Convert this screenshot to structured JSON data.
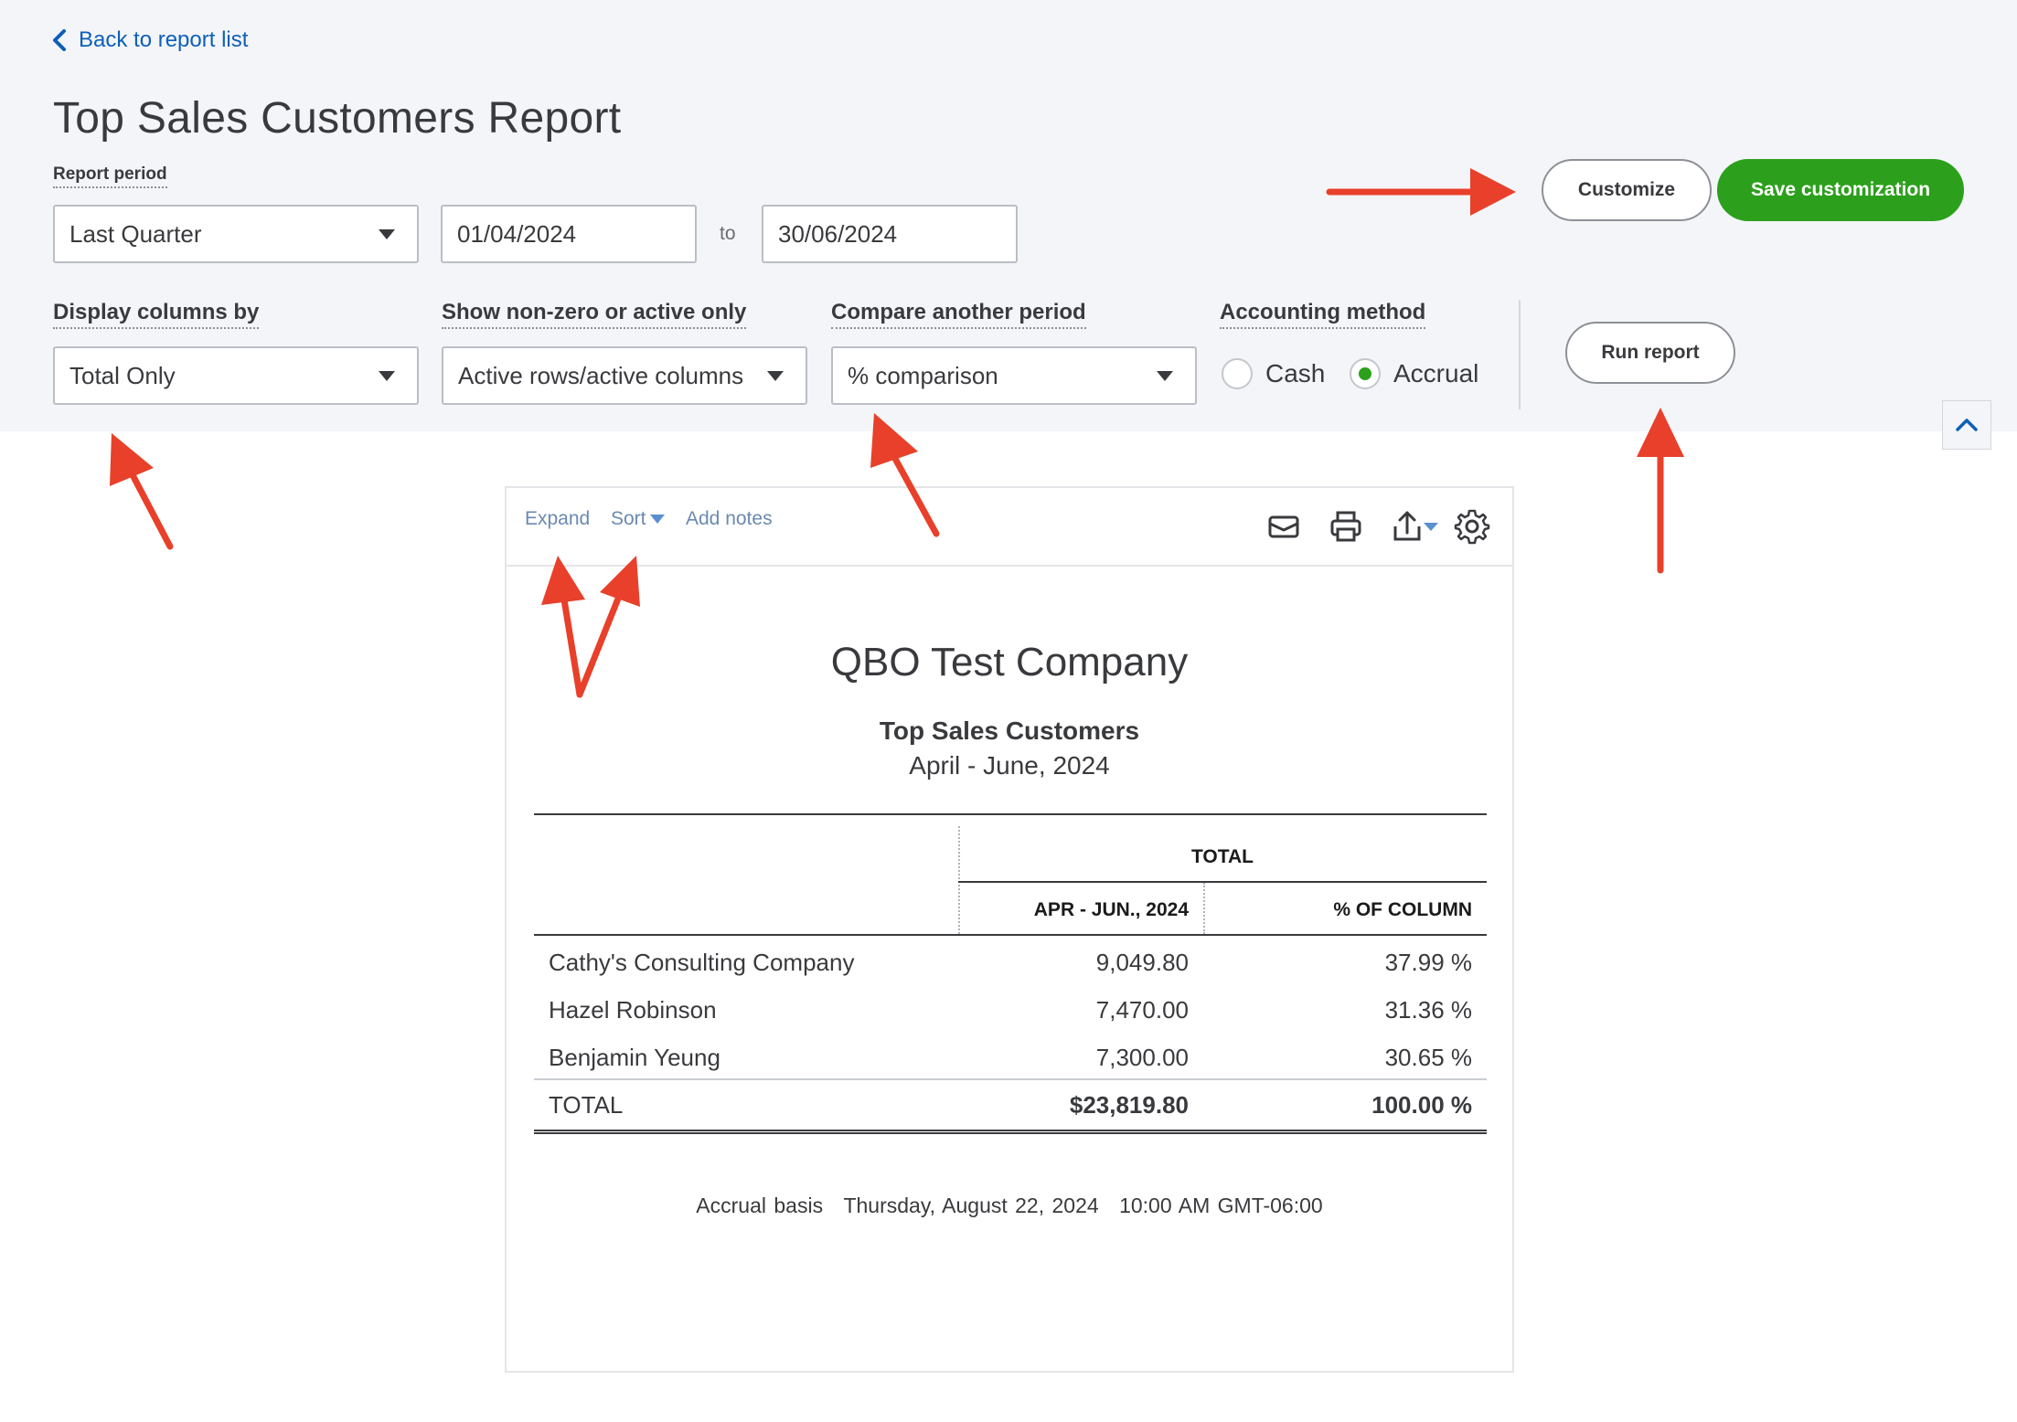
{
  "nav": {
    "back_label": "Back to report list"
  },
  "page": {
    "title": "Top Sales Customers Report"
  },
  "filters": {
    "report_period_label": "Report period",
    "report_period_value": "Last Quarter",
    "start_date": "01/04/2024",
    "to_label": "to",
    "end_date": "30/06/2024",
    "display_columns_label": "Display columns by",
    "display_columns_value": "Total Only",
    "non_zero_label": "Show non-zero or active only",
    "non_zero_value": "Active rows/active columns",
    "compare_label": "Compare another period",
    "compare_value": "% comparison",
    "accounting_label": "Accounting method",
    "accounting_options": [
      {
        "label": "Cash",
        "selected": false
      },
      {
        "label": "Accrual",
        "selected": true
      }
    ]
  },
  "actions": {
    "customize_label": "Customize",
    "save_customization_label": "Save customization",
    "run_report_label": "Run report"
  },
  "toolbar": {
    "expand_label": "Expand",
    "sort_label": "Sort",
    "add_notes_label": "Add notes",
    "icons": [
      "email-icon",
      "print-icon",
      "export-icon",
      "settings-icon"
    ]
  },
  "report": {
    "company": "QBO Test Company",
    "name": "Top Sales Customers",
    "dates": "April - June, 2024",
    "total_header": "TOTAL",
    "columns": [
      "APR - JUN., 2024",
      "% OF COLUMN"
    ],
    "rows": [
      {
        "name": "Cathy's Consulting Company",
        "amount": "9,049.80",
        "pct": "37.99 %"
      },
      {
        "name": "Hazel Robinson",
        "amount": "7,470.00",
        "pct": "31.36 %"
      },
      {
        "name": "Benjamin Yeung",
        "amount": "7,300.00",
        "pct": "30.65 %"
      }
    ],
    "total": {
      "name": "TOTAL",
      "amount": "$23,819.80",
      "pct": "100.00 %"
    },
    "footer": {
      "basis": "Accrual basis",
      "date": "Thursday, August 22, 2024",
      "time": "10:00 AM GMT-06:00"
    }
  },
  "colors": {
    "accent_green": "#2ca01c",
    "link_blue": "#0d5fb8",
    "annotation_red": "#e8402a",
    "header_bg": "#f4f5f8"
  }
}
